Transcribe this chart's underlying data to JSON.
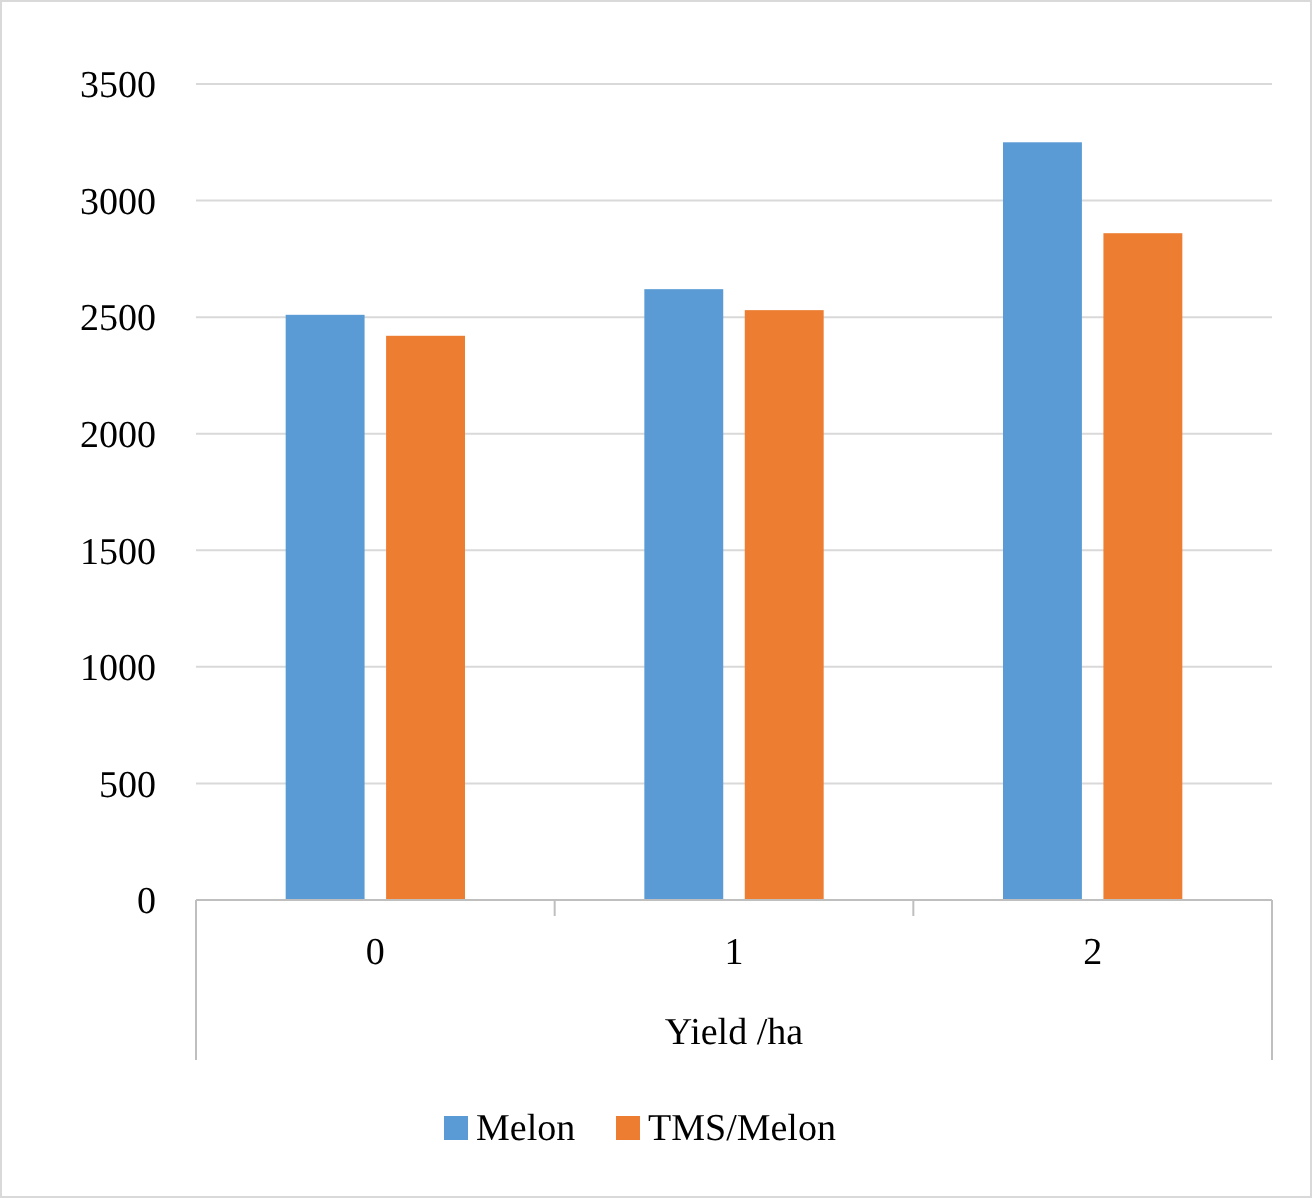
{
  "chart_data": {
    "type": "bar",
    "xlabel": "Yield /ha",
    "categories": [
      "0",
      "1",
      "2"
    ],
    "series": [
      {
        "name": "Melon",
        "color": "#5b9bd5",
        "values": [
          2510,
          2620,
          3250
        ]
      },
      {
        "name": "TMS/Melon",
        "color": "#ed7d31",
        "values": [
          2420,
          2530,
          2860
        ]
      }
    ],
    "ylim": [
      0,
      3500
    ],
    "yticks": [
      0,
      500,
      1000,
      1500,
      2000,
      2500,
      3000,
      3500
    ],
    "grid": "y",
    "legend": "bottom"
  }
}
